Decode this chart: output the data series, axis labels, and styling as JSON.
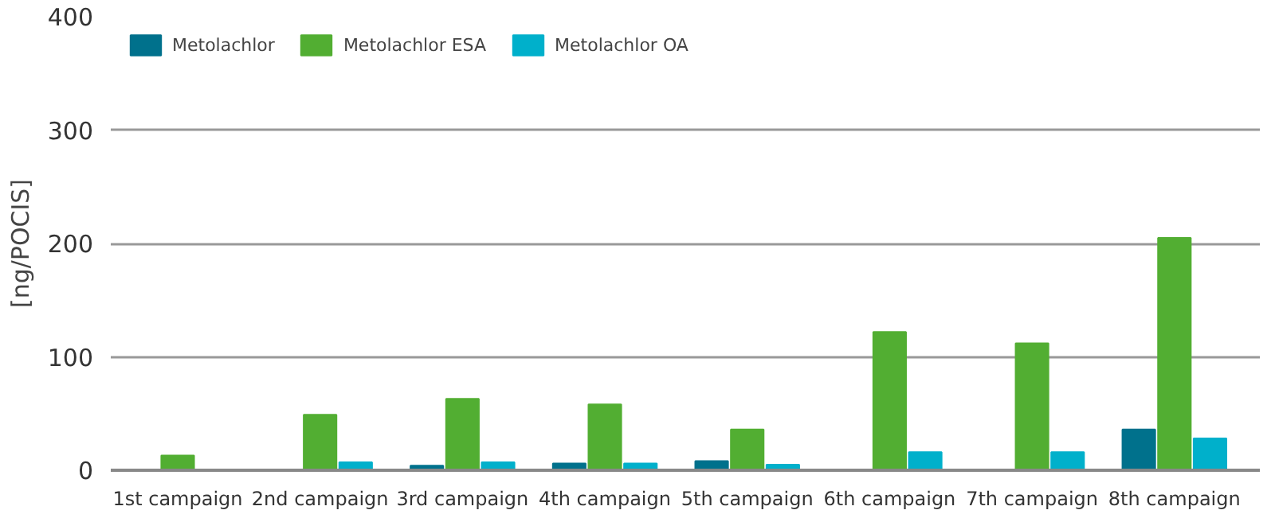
{
  "chart_data": {
    "type": "bar",
    "ylabel": "[ng/POCIS]",
    "categories": [
      "1st campaign",
      "2nd campaign",
      "3rd campaign",
      "4th campaign",
      "5th campaign",
      "6th campaign",
      "7th campaign",
      "8th campaign"
    ],
    "series": [
      {
        "name": "Metolachlor",
        "color": "#00718c",
        "values": [
          0,
          0,
          4,
          6,
          8,
          0,
          0,
          36
        ]
      },
      {
        "name": "Metolachlor ESA",
        "color": "#52ae32",
        "values": [
          13,
          49,
          63,
          58,
          36,
          122,
          112,
          205
        ]
      },
      {
        "name": "Metolachlor OA",
        "color": "#00b0cb",
        "values": [
          0,
          7,
          7,
          6,
          5,
          16,
          16,
          28
        ]
      }
    ],
    "ylim": [
      0,
      400
    ],
    "yticks": [
      0,
      100,
      200,
      300,
      400
    ],
    "grid": "y",
    "legend": "top left"
  }
}
